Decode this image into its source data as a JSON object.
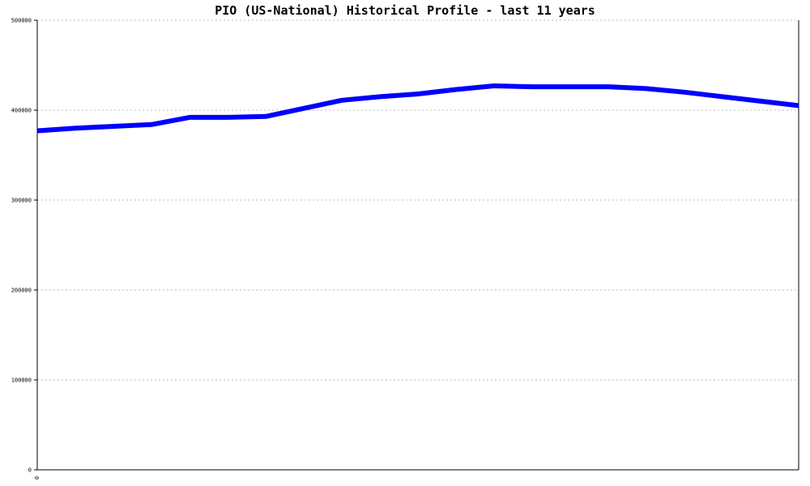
{
  "chart_data": {
    "type": "line",
    "title": "PIO (US-National) Historical Profile - last 11 years",
    "xlabel": "",
    "ylabel": "",
    "ylim": [
      0,
      500000
    ],
    "yticks": [
      0,
      100000,
      200000,
      300000,
      400000,
      500000
    ],
    "ytick_labels": [
      "0",
      "100000",
      "200000",
      "300000",
      "400000",
      "500000"
    ],
    "xtick_labels": [
      "0"
    ],
    "grid": true,
    "series": [
      {
        "color": "#0000ff",
        "x": [
          0,
          1,
          2,
          3,
          4,
          5,
          6,
          7,
          8,
          9,
          10,
          11,
          12,
          13,
          14,
          15,
          16,
          17,
          18,
          19,
          20
        ],
        "values": [
          377000,
          380000,
          382000,
          384000,
          392000,
          392000,
          393000,
          402000,
          411000,
          415000,
          418000,
          423000,
          427000,
          426000,
          426000,
          426000,
          424000,
          420000,
          415000,
          410000,
          405000
        ]
      }
    ]
  }
}
